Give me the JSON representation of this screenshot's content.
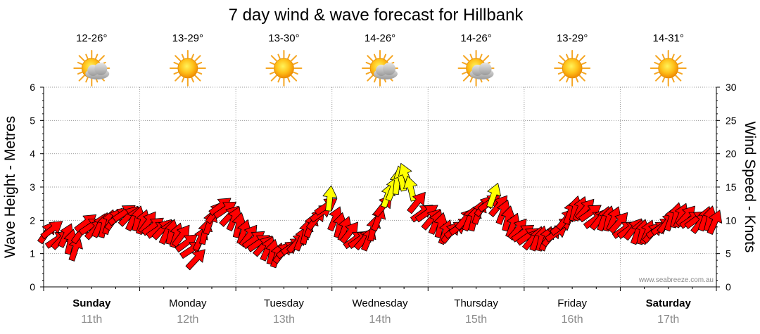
{
  "chart_data": {
    "type": "line",
    "title": "7 day wind & wave forecast for Hillbank",
    "ylabel_left": "Wave Height - Metres",
    "ylabel_right": "Wind Speed - Knots",
    "ylim_left": [
      0,
      6
    ],
    "ylim_right": [
      0,
      30
    ],
    "yticks_left": [
      "0",
      "1",
      "2",
      "3",
      "4",
      "5",
      "6"
    ],
    "yticks_right": [
      "0",
      "5",
      "10",
      "15",
      "20",
      "25",
      "30"
    ],
    "grid": true,
    "days": [
      {
        "name": "Sunday",
        "date": "11th",
        "temp": "12-26°",
        "icon": "sun-cloud-icon",
        "bold": true
      },
      {
        "name": "Monday",
        "date": "12th",
        "temp": "13-29°",
        "icon": "sun-icon",
        "bold": false
      },
      {
        "name": "Tuesday",
        "date": "13th",
        "temp": "13-30°",
        "icon": "sun-icon",
        "bold": false
      },
      {
        "name": "Wednesday",
        "date": "14th",
        "temp": "14-26°",
        "icon": "sun-cloud-icon",
        "bold": false
      },
      {
        "name": "Thursday",
        "date": "15th",
        "temp": "14-26°",
        "icon": "sun-cloud-icon",
        "bold": false
      },
      {
        "name": "Friday",
        "date": "16th",
        "temp": "13-29°",
        "icon": "sun-icon",
        "bold": false
      },
      {
        "name": "Saturday",
        "date": "17th",
        "temp": "14-31°",
        "icon": "sun-icon",
        "bold": true
      }
    ],
    "wind_series": {
      "name": "Wind Speed - Knots",
      "x_days": [
        0.0,
        0.05,
        0.1,
        0.15,
        0.2,
        0.25,
        0.3,
        0.35,
        0.4,
        0.45,
        0.5,
        0.55,
        0.6,
        0.65,
        0.7,
        0.75,
        0.8,
        0.85,
        0.9,
        0.95,
        1.0,
        1.05,
        1.1,
        1.15,
        1.2,
        1.25,
        1.3,
        1.35,
        1.4,
        1.45,
        1.5,
        1.55,
        1.6,
        1.65,
        1.7,
        1.75,
        1.8,
        1.85,
        1.9,
        1.95,
        2.0,
        2.05,
        2.1,
        2.15,
        2.2,
        2.25,
        2.3,
        2.35,
        2.4,
        2.45,
        2.5,
        2.55,
        2.6,
        2.65,
        2.7,
        2.75,
        2.8,
        2.85,
        2.9,
        2.95,
        3.0,
        3.05,
        3.1,
        3.15,
        3.2,
        3.25,
        3.3,
        3.35,
        3.4,
        3.45,
        3.5,
        3.55,
        3.6,
        3.65,
        3.7,
        3.75,
        3.8,
        3.85,
        3.9,
        3.95,
        4.0,
        4.05,
        4.1,
        4.15,
        4.2,
        4.25,
        4.3,
        4.35,
        4.4,
        4.45,
        4.5,
        4.55,
        4.6,
        4.65,
        4.7,
        4.75,
        4.8,
        4.85,
        4.9,
        4.95,
        5.0,
        5.05,
        5.1,
        5.15,
        5.2,
        5.25,
        5.3,
        5.35,
        5.4,
        5.45,
        5.5,
        5.55,
        5.6,
        5.65,
        5.7,
        5.75,
        5.8,
        5.85,
        5.9,
        5.95,
        6.0,
        6.05,
        6.1,
        6.15,
        6.2,
        6.25,
        6.3,
        6.35,
        6.4,
        6.45,
        6.5,
        6.55,
        6.6,
        6.65,
        6.7,
        6.75,
        6.8,
        6.85,
        6.9,
        6.95
      ],
      "knots": [
        8.0,
        8.5,
        7.0,
        7.0,
        7.5,
        6.5,
        5.5,
        8.0,
        9.5,
        9.0,
        8.5,
        9.0,
        9.0,
        9.5,
        10.0,
        10.5,
        11.0,
        10.5,
        10.0,
        10.0,
        9.5,
        9.5,
        9.0,
        8.5,
        8.5,
        8.0,
        8.0,
        7.5,
        7.5,
        6.5,
        5.5,
        4.0,
        7.0,
        8.0,
        9.5,
        11.0,
        12.0,
        11.5,
        10.5,
        10.0,
        9.0,
        8.0,
        7.5,
        7.0,
        6.5,
        6.0,
        5.5,
        5.0,
        4.5,
        5.0,
        5.5,
        6.0,
        6.5,
        7.0,
        8.0,
        9.0,
        10.0,
        11.0,
        12.0,
        13.0,
        10.0,
        9.0,
        8.5,
        8.0,
        7.0,
        7.0,
        7.0,
        7.0,
        8.5,
        10.0,
        12.0,
        13.5,
        14.5,
        15.5,
        16.0,
        16.5,
        14.5,
        12.5,
        11.0,
        11.0,
        10.0,
        9.5,
        9.0,
        8.0,
        8.0,
        8.5,
        9.0,
        10.0,
        10.0,
        10.0,
        11.0,
        12.0,
        12.5,
        13.5,
        12.0,
        11.0,
        10.0,
        9.0,
        8.5,
        8.0,
        7.5,
        7.0,
        7.0,
        7.0,
        7.0,
        7.5,
        8.0,
        9.0,
        10.0,
        11.0,
        11.5,
        11.5,
        11.5,
        11.0,
        10.0,
        10.0,
        10.0,
        10.0,
        10.0,
        9.5,
        8.5,
        8.5,
        8.5,
        8.0,
        8.0,
        8.0,
        8.0,
        8.5,
        9.0,
        9.5,
        10.0,
        10.5,
        10.5,
        10.5,
        10.0,
        10.0,
        9.5,
        10.0,
        10.0,
        9.5
      ]
    },
    "credit": "www.seabreeze.com.au"
  },
  "colors": {
    "arrow_default": "#ff0000",
    "arrow_strong": "#ffff00",
    "grid": "#9a9a9a",
    "date_text": "#8a8a8a",
    "sun": "#f5a623"
  }
}
